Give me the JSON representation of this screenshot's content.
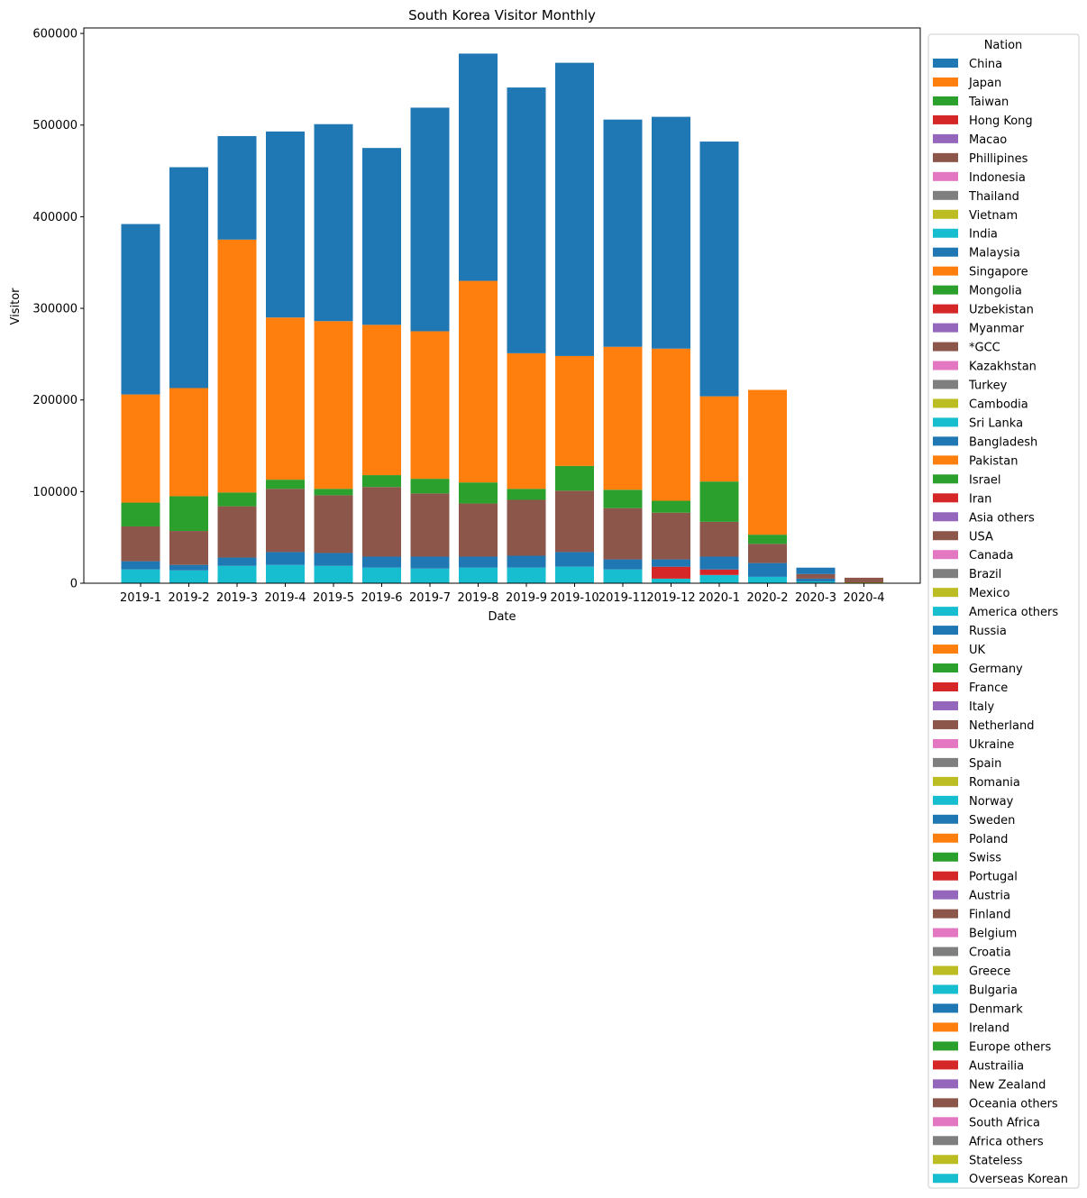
{
  "chart_data": {
    "type": "bar",
    "stacked": true,
    "title": "South Korea Visitor Monthly",
    "xlabel": "Date",
    "ylabel": "Visitor",
    "ylim": [
      0,
      606000
    ],
    "yticks": [
      0,
      100000,
      200000,
      300000,
      400000,
      500000,
      600000
    ],
    "legend_title": "Nation",
    "legend_position": "outside-right",
    "categories": [
      "2019-1",
      "2019-2",
      "2019-3",
      "2019-4",
      "2019-5",
      "2019-6",
      "2019-7",
      "2019-8",
      "2019-9",
      "2019-10",
      "2019-11",
      "2019-12",
      "2020-1",
      "2020-2",
      "2020-3",
      "2020-4"
    ],
    "legend": [
      {
        "name": "China",
        "color": "#1f77b4"
      },
      {
        "name": "Japan",
        "color": "#ff7f0e"
      },
      {
        "name": "Taiwan",
        "color": "#2ca02c"
      },
      {
        "name": "Hong Kong",
        "color": "#d62728"
      },
      {
        "name": "Macao",
        "color": "#9467bd"
      },
      {
        "name": "Phillipines",
        "color": "#8c564b"
      },
      {
        "name": "Indonesia",
        "color": "#e377c2"
      },
      {
        "name": "Thailand",
        "color": "#7f7f7f"
      },
      {
        "name": "Vietnam",
        "color": "#bcbd22"
      },
      {
        "name": "India",
        "color": "#17becf"
      },
      {
        "name": "Malaysia",
        "color": "#1f77b4"
      },
      {
        "name": "Singapore",
        "color": "#ff7f0e"
      },
      {
        "name": "Mongolia",
        "color": "#2ca02c"
      },
      {
        "name": "Uzbekistan",
        "color": "#d62728"
      },
      {
        "name": "Myanmar",
        "color": "#9467bd"
      },
      {
        "name": "*GCC",
        "color": "#8c564b"
      },
      {
        "name": "Kazakhstan",
        "color": "#e377c2"
      },
      {
        "name": "Turkey",
        "color": "#7f7f7f"
      },
      {
        "name": "Cambodia",
        "color": "#bcbd22"
      },
      {
        "name": "Sri Lanka",
        "color": "#17becf"
      },
      {
        "name": "Bangladesh",
        "color": "#1f77b4"
      },
      {
        "name": "Pakistan",
        "color": "#ff7f0e"
      },
      {
        "name": "Israel",
        "color": "#2ca02c"
      },
      {
        "name": "Iran",
        "color": "#d62728"
      },
      {
        "name": "Asia others",
        "color": "#9467bd"
      },
      {
        "name": "USA",
        "color": "#8c564b"
      },
      {
        "name": "Canada",
        "color": "#e377c2"
      },
      {
        "name": "Brazil",
        "color": "#7f7f7f"
      },
      {
        "name": "Mexico",
        "color": "#bcbd22"
      },
      {
        "name": "America others",
        "color": "#17becf"
      },
      {
        "name": "Russia",
        "color": "#1f77b4"
      },
      {
        "name": "UK",
        "color": "#ff7f0e"
      },
      {
        "name": "Germany",
        "color": "#2ca02c"
      },
      {
        "name": "France",
        "color": "#d62728"
      },
      {
        "name": "Italy",
        "color": "#9467bd"
      },
      {
        "name": "Netherland",
        "color": "#8c564b"
      },
      {
        "name": "Ukraine",
        "color": "#e377c2"
      },
      {
        "name": "Spain",
        "color": "#7f7f7f"
      },
      {
        "name": "Romania",
        "color": "#bcbd22"
      },
      {
        "name": "Norway",
        "color": "#17becf"
      },
      {
        "name": "Sweden",
        "color": "#1f77b4"
      },
      {
        "name": "Poland",
        "color": "#ff7f0e"
      },
      {
        "name": "Swiss",
        "color": "#2ca02c"
      },
      {
        "name": "Portugal",
        "color": "#d62728"
      },
      {
        "name": "Austria",
        "color": "#9467bd"
      },
      {
        "name": "Finland",
        "color": "#8c564b"
      },
      {
        "name": "Belgium",
        "color": "#e377c2"
      },
      {
        "name": "Croatia",
        "color": "#7f7f7f"
      },
      {
        "name": "Greece",
        "color": "#bcbd22"
      },
      {
        "name": "Bulgaria",
        "color": "#17becf"
      },
      {
        "name": "Denmark",
        "color": "#1f77b4"
      },
      {
        "name": "Ireland",
        "color": "#ff7f0e"
      },
      {
        "name": "Europe others",
        "color": "#2ca02c"
      },
      {
        "name": "Austrailia",
        "color": "#d62728"
      },
      {
        "name": "New Zealand",
        "color": "#9467bd"
      },
      {
        "name": "Oceania others",
        "color": "#8c564b"
      },
      {
        "name": "South Africa",
        "color": "#e377c2"
      },
      {
        "name": "Africa others",
        "color": "#7f7f7f"
      },
      {
        "name": "Stateless",
        "color": "#bcbd22"
      },
      {
        "name": "Overseas Korean",
        "color": "#17becf"
      }
    ],
    "stacks": [
      {
        "category": "2019-1",
        "segments": [
          {
            "color": "#17becf",
            "value": 15000
          },
          {
            "color": "#1f77b4",
            "value": 9000
          },
          {
            "color": "#8c564b",
            "value": 38000
          },
          {
            "color": "#2ca02c",
            "value": 26000
          },
          {
            "color": "#ff7f0e",
            "value": 118000
          },
          {
            "color": "#1f77b4",
            "value": 186000
          }
        ]
      },
      {
        "category": "2019-2",
        "segments": [
          {
            "color": "#17becf",
            "value": 14000
          },
          {
            "color": "#1f77b4",
            "value": 6000
          },
          {
            "color": "#8c564b",
            "value": 37000
          },
          {
            "color": "#2ca02c",
            "value": 38000
          },
          {
            "color": "#ff7f0e",
            "value": 118000
          },
          {
            "color": "#1f77b4",
            "value": 241000
          }
        ]
      },
      {
        "category": "2019-3",
        "segments": [
          {
            "color": "#17becf",
            "value": 19000
          },
          {
            "color": "#1f77b4",
            "value": 9000
          },
          {
            "color": "#8c564b",
            "value": 56000
          },
          {
            "color": "#2ca02c",
            "value": 15000
          },
          {
            "color": "#ff7f0e",
            "value": 276000
          },
          {
            "color": "#1f77b4",
            "value": 113000
          }
        ]
      },
      {
        "category": "2019-4",
        "segments": [
          {
            "color": "#17becf",
            "value": 20000
          },
          {
            "color": "#1f77b4",
            "value": 14000
          },
          {
            "color": "#8c564b",
            "value": 69000
          },
          {
            "color": "#2ca02c",
            "value": 10000
          },
          {
            "color": "#ff7f0e",
            "value": 177000
          },
          {
            "color": "#1f77b4",
            "value": 203000
          }
        ]
      },
      {
        "category": "2019-5",
        "segments": [
          {
            "color": "#17becf",
            "value": 19000
          },
          {
            "color": "#1f77b4",
            "value": 14000
          },
          {
            "color": "#8c564b",
            "value": 63000
          },
          {
            "color": "#2ca02c",
            "value": 7000
          },
          {
            "color": "#ff7f0e",
            "value": 183000
          },
          {
            "color": "#1f77b4",
            "value": 215000
          }
        ]
      },
      {
        "category": "2019-6",
        "segments": [
          {
            "color": "#17becf",
            "value": 17000
          },
          {
            "color": "#1f77b4",
            "value": 12000
          },
          {
            "color": "#8c564b",
            "value": 76000
          },
          {
            "color": "#2ca02c",
            "value": 13000
          },
          {
            "color": "#ff7f0e",
            "value": 164000
          },
          {
            "color": "#1f77b4",
            "value": 193000
          }
        ]
      },
      {
        "category": "2019-7",
        "segments": [
          {
            "color": "#17becf",
            "value": 16000
          },
          {
            "color": "#1f77b4",
            "value": 13000
          },
          {
            "color": "#8c564b",
            "value": 69000
          },
          {
            "color": "#2ca02c",
            "value": 16000
          },
          {
            "color": "#ff7f0e",
            "value": 161000
          },
          {
            "color": "#1f77b4",
            "value": 244000
          }
        ]
      },
      {
        "category": "2019-8",
        "segments": [
          {
            "color": "#17becf",
            "value": 17000
          },
          {
            "color": "#1f77b4",
            "value": 12000
          },
          {
            "color": "#8c564b",
            "value": 58000
          },
          {
            "color": "#2ca02c",
            "value": 23000
          },
          {
            "color": "#ff7f0e",
            "value": 220000
          },
          {
            "color": "#1f77b4",
            "value": 248000
          }
        ]
      },
      {
        "category": "2019-9",
        "segments": [
          {
            "color": "#17becf",
            "value": 17000
          },
          {
            "color": "#1f77b4",
            "value": 13000
          },
          {
            "color": "#8c564b",
            "value": 61000
          },
          {
            "color": "#2ca02c",
            "value": 12000
          },
          {
            "color": "#ff7f0e",
            "value": 148000
          },
          {
            "color": "#1f77b4",
            "value": 290000
          }
        ]
      },
      {
        "category": "2019-10",
        "segments": [
          {
            "color": "#17becf",
            "value": 18000
          },
          {
            "color": "#1f77b4",
            "value": 16000
          },
          {
            "color": "#8c564b",
            "value": 67000
          },
          {
            "color": "#2ca02c",
            "value": 27000
          },
          {
            "color": "#ff7f0e",
            "value": 120000
          },
          {
            "color": "#1f77b4",
            "value": 320000
          }
        ]
      },
      {
        "category": "2019-11",
        "segments": [
          {
            "color": "#17becf",
            "value": 15000
          },
          {
            "color": "#1f77b4",
            "value": 11000
          },
          {
            "color": "#8c564b",
            "value": 56000
          },
          {
            "color": "#2ca02c",
            "value": 20000
          },
          {
            "color": "#ff7f0e",
            "value": 156000
          },
          {
            "color": "#1f77b4",
            "value": 248000
          }
        ]
      },
      {
        "category": "2019-12",
        "segments": [
          {
            "color": "#17becf",
            "value": 5000
          },
          {
            "color": "#d62728",
            "value": 13000
          },
          {
            "color": "#1f77b4",
            "value": 8000
          },
          {
            "color": "#8c564b",
            "value": 51000
          },
          {
            "color": "#2ca02c",
            "value": 13000
          },
          {
            "color": "#ff7f0e",
            "value": 166000
          },
          {
            "color": "#1f77b4",
            "value": 253000
          }
        ]
      },
      {
        "category": "2020-1",
        "segments": [
          {
            "color": "#17becf",
            "value": 9000
          },
          {
            "color": "#d62728",
            "value": 6000
          },
          {
            "color": "#1f77b4",
            "value": 14000
          },
          {
            "color": "#8c564b",
            "value": 38000
          },
          {
            "color": "#2ca02c",
            "value": 44000
          },
          {
            "color": "#ff7f0e",
            "value": 93000
          },
          {
            "color": "#1f77b4",
            "value": 278000
          }
        ]
      },
      {
        "category": "2020-2",
        "segments": [
          {
            "color": "#17becf",
            "value": 7000
          },
          {
            "color": "#1f77b4",
            "value": 15000
          },
          {
            "color": "#8c564b",
            "value": 21000
          },
          {
            "color": "#2ca02c",
            "value": 10000
          },
          {
            "color": "#ff7f0e",
            "value": 158000
          }
        ]
      },
      {
        "category": "2020-3",
        "segments": [
          {
            "color": "#17becf",
            "value": 2000
          },
          {
            "color": "#1f77b4",
            "value": 3000
          },
          {
            "color": "#8c564b",
            "value": 5000
          },
          {
            "color": "#1f77b4",
            "value": 7000
          }
        ]
      },
      {
        "category": "2020-4",
        "segments": [
          {
            "color": "#bcbd22",
            "value": 1000
          },
          {
            "color": "#8c564b",
            "value": 5000
          }
        ]
      }
    ]
  }
}
